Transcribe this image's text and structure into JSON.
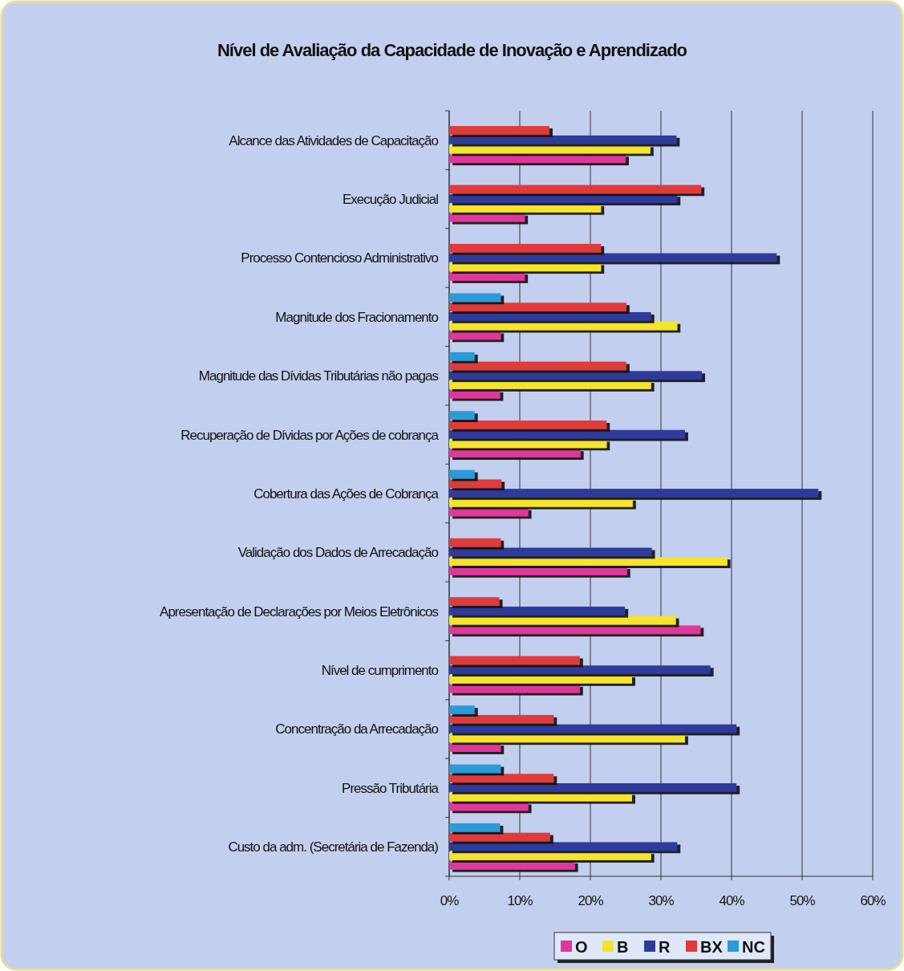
{
  "chart_data": {
    "type": "bar",
    "orientation": "horizontal",
    "title": "Nível de Avaliação da Capacidade de Inovação e Aprendizado",
    "categories": [
      "Alcance das Atividades de Capacitação",
      "Execução Judicial",
      "Processo Contencioso Administrativo",
      "Magnitude dos Fracionamento",
      "Magnitude das Dívidas Tributárias não pagas",
      "Recuperação de Dívidas por Ações de cobrança",
      "Cobertura das Ações de Cobrança",
      "Validação dos Dados de Arrecadação",
      "Apresentação de Declarações por Meios Eletrônicos",
      "Nível de cumprimento",
      "Concentração da  Arrecadação",
      "Pressão Tributária",
      "Custo da adm. (Secretária de Fazenda)"
    ],
    "series": [
      {
        "name": "O",
        "color": "#e0389a",
        "values": [
          25.0,
          10.7,
          10.7,
          7.3,
          7.2,
          18.6,
          11.2,
          25.2,
          35.6,
          18.5,
          7.3,
          11.2,
          17.8
        ]
      },
      {
        "name": "B",
        "color": "#f5e42a",
        "values": [
          28.5,
          21.5,
          21.5,
          32.3,
          28.6,
          22.3,
          26.0,
          39.4,
          32.1,
          25.9,
          33.4,
          25.9,
          28.6
        ]
      },
      {
        "name": "R",
        "color": "#2e3a9a",
        "values": [
          32.2,
          32.3,
          46.4,
          28.6,
          35.8,
          33.4,
          52.3,
          28.7,
          24.9,
          37.0,
          40.7,
          40.7,
          32.3
        ]
      },
      {
        "name": "BX",
        "color": "#e03a3a",
        "values": [
          14.2,
          35.7,
          21.5,
          25.1,
          25.1,
          22.3,
          7.4,
          7.3,
          7.1,
          18.5,
          14.8,
          14.8,
          14.3
        ]
      },
      {
        "name": "NC",
        "color": "#2a9ad8",
        "values": [
          null,
          null,
          null,
          7.3,
          3.6,
          3.6,
          3.6,
          null,
          null,
          null,
          3.6,
          7.3,
          7.2
        ]
      }
    ],
    "xlim": [
      0,
      60
    ],
    "xticks": [
      {
        "value": 0,
        "label": "0%"
      },
      {
        "value": 10,
        "label": "10%"
      },
      {
        "value": 20,
        "label": "20%"
      },
      {
        "value": 30,
        "label": "30%"
      },
      {
        "value": 40,
        "label": "40%"
      },
      {
        "value": 50,
        "label": "50%"
      },
      {
        "value": 60,
        "label": "60%"
      }
    ],
    "grid": "x",
    "legend": "bottom"
  }
}
